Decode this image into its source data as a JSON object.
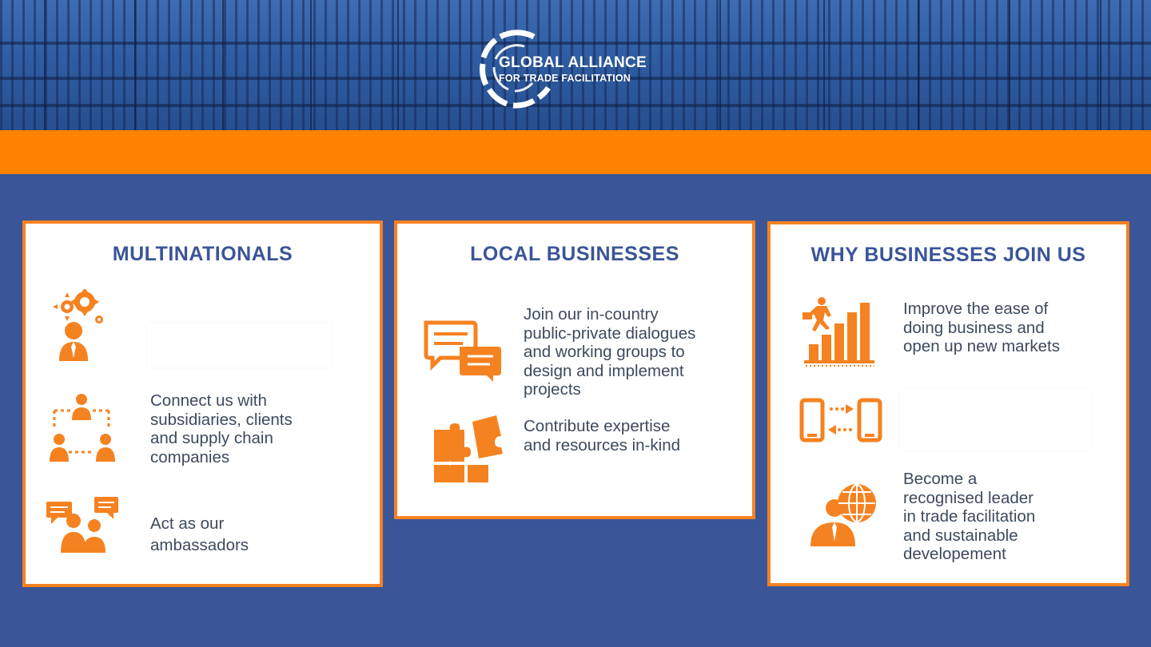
{
  "header": {
    "logo": {
      "line1": "GLOBAL ALLIANCE",
      "line2": "FOR TRADE FACILITATION"
    }
  },
  "colors": {
    "background": "#3a5598",
    "accent": "#f58220",
    "strip": "#ff8200",
    "title": "#3a5598",
    "text": "#3d4a5e"
  },
  "cards": {
    "multinationals": {
      "title": "MULTINATIONALS",
      "items": [
        {
          "icon": "gears-person-icon",
          "text": ""
        },
        {
          "icon": "network-people-icon",
          "text": "Connect us with\nsubsidiaries, clients\nand supply chain\ncompanies"
        },
        {
          "icon": "speaking-people-icon",
          "text": "Act as our\nambassadors"
        }
      ]
    },
    "local_businesses": {
      "title": "LOCAL BUSINESSES",
      "items": [
        {
          "icon": "chat-bubbles-icon",
          "text": "Join our in-country\npublic-private dialogues\nand working groups to\ndesign and implement\nprojects"
        },
        {
          "icon": "puzzle-icon",
          "text": "Contribute expertise\nand resources in-kind"
        }
      ]
    },
    "why_join": {
      "title": "WHY BUSINESSES JOIN US",
      "items": [
        {
          "icon": "growth-chart-icon",
          "text": "Improve the ease of\ndoing business and\nopen up new markets"
        },
        {
          "icon": "device-exchange-icon",
          "text": ""
        },
        {
          "icon": "globe-person-icon",
          "text": "Become a\nrecognised leader\nin trade facilitation\nand sustainable\ndevelopement"
        }
      ]
    }
  }
}
